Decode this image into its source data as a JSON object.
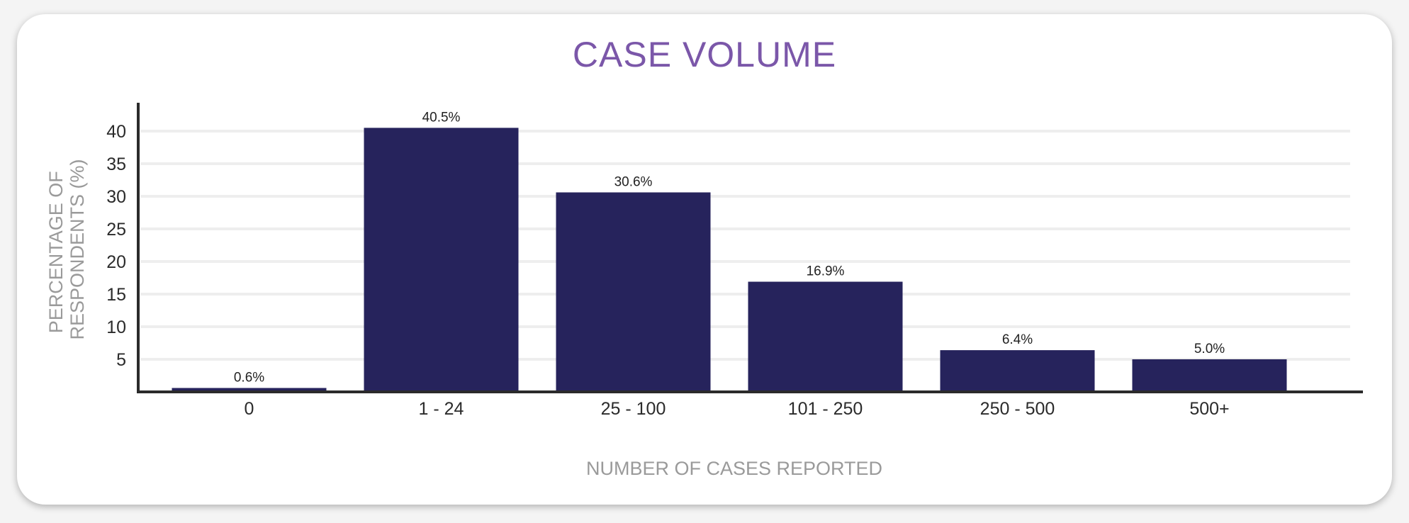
{
  "chart_data": {
    "type": "bar",
    "title": "CASE VOLUME",
    "xlabel": "NUMBER OF CASES REPORTED",
    "ylabel_lines": [
      "PERCENTAGE OF",
      "RESPONDENTS (%)"
    ],
    "categories": [
      "0",
      "1 - 24",
      "25 - 100",
      "101 - 250",
      "250 - 500",
      "500+"
    ],
    "values": [
      0.6,
      40.5,
      30.6,
      16.9,
      6.4,
      5.0
    ],
    "value_labels": [
      "0.6%",
      "40.5%",
      "30.6%",
      "16.9%",
      "6.4%",
      "5.0%"
    ],
    "yticks": [
      5,
      10,
      15,
      20,
      25,
      30,
      35,
      40
    ],
    "ylim": [
      0,
      45
    ],
    "grid": true,
    "legend": "none",
    "colors": {
      "bar": "#26235c",
      "title": "#7b57a9",
      "axis": "#2b2b2b",
      "grid": "#eeeeee",
      "axis_title": "#9a9a9a"
    }
  }
}
